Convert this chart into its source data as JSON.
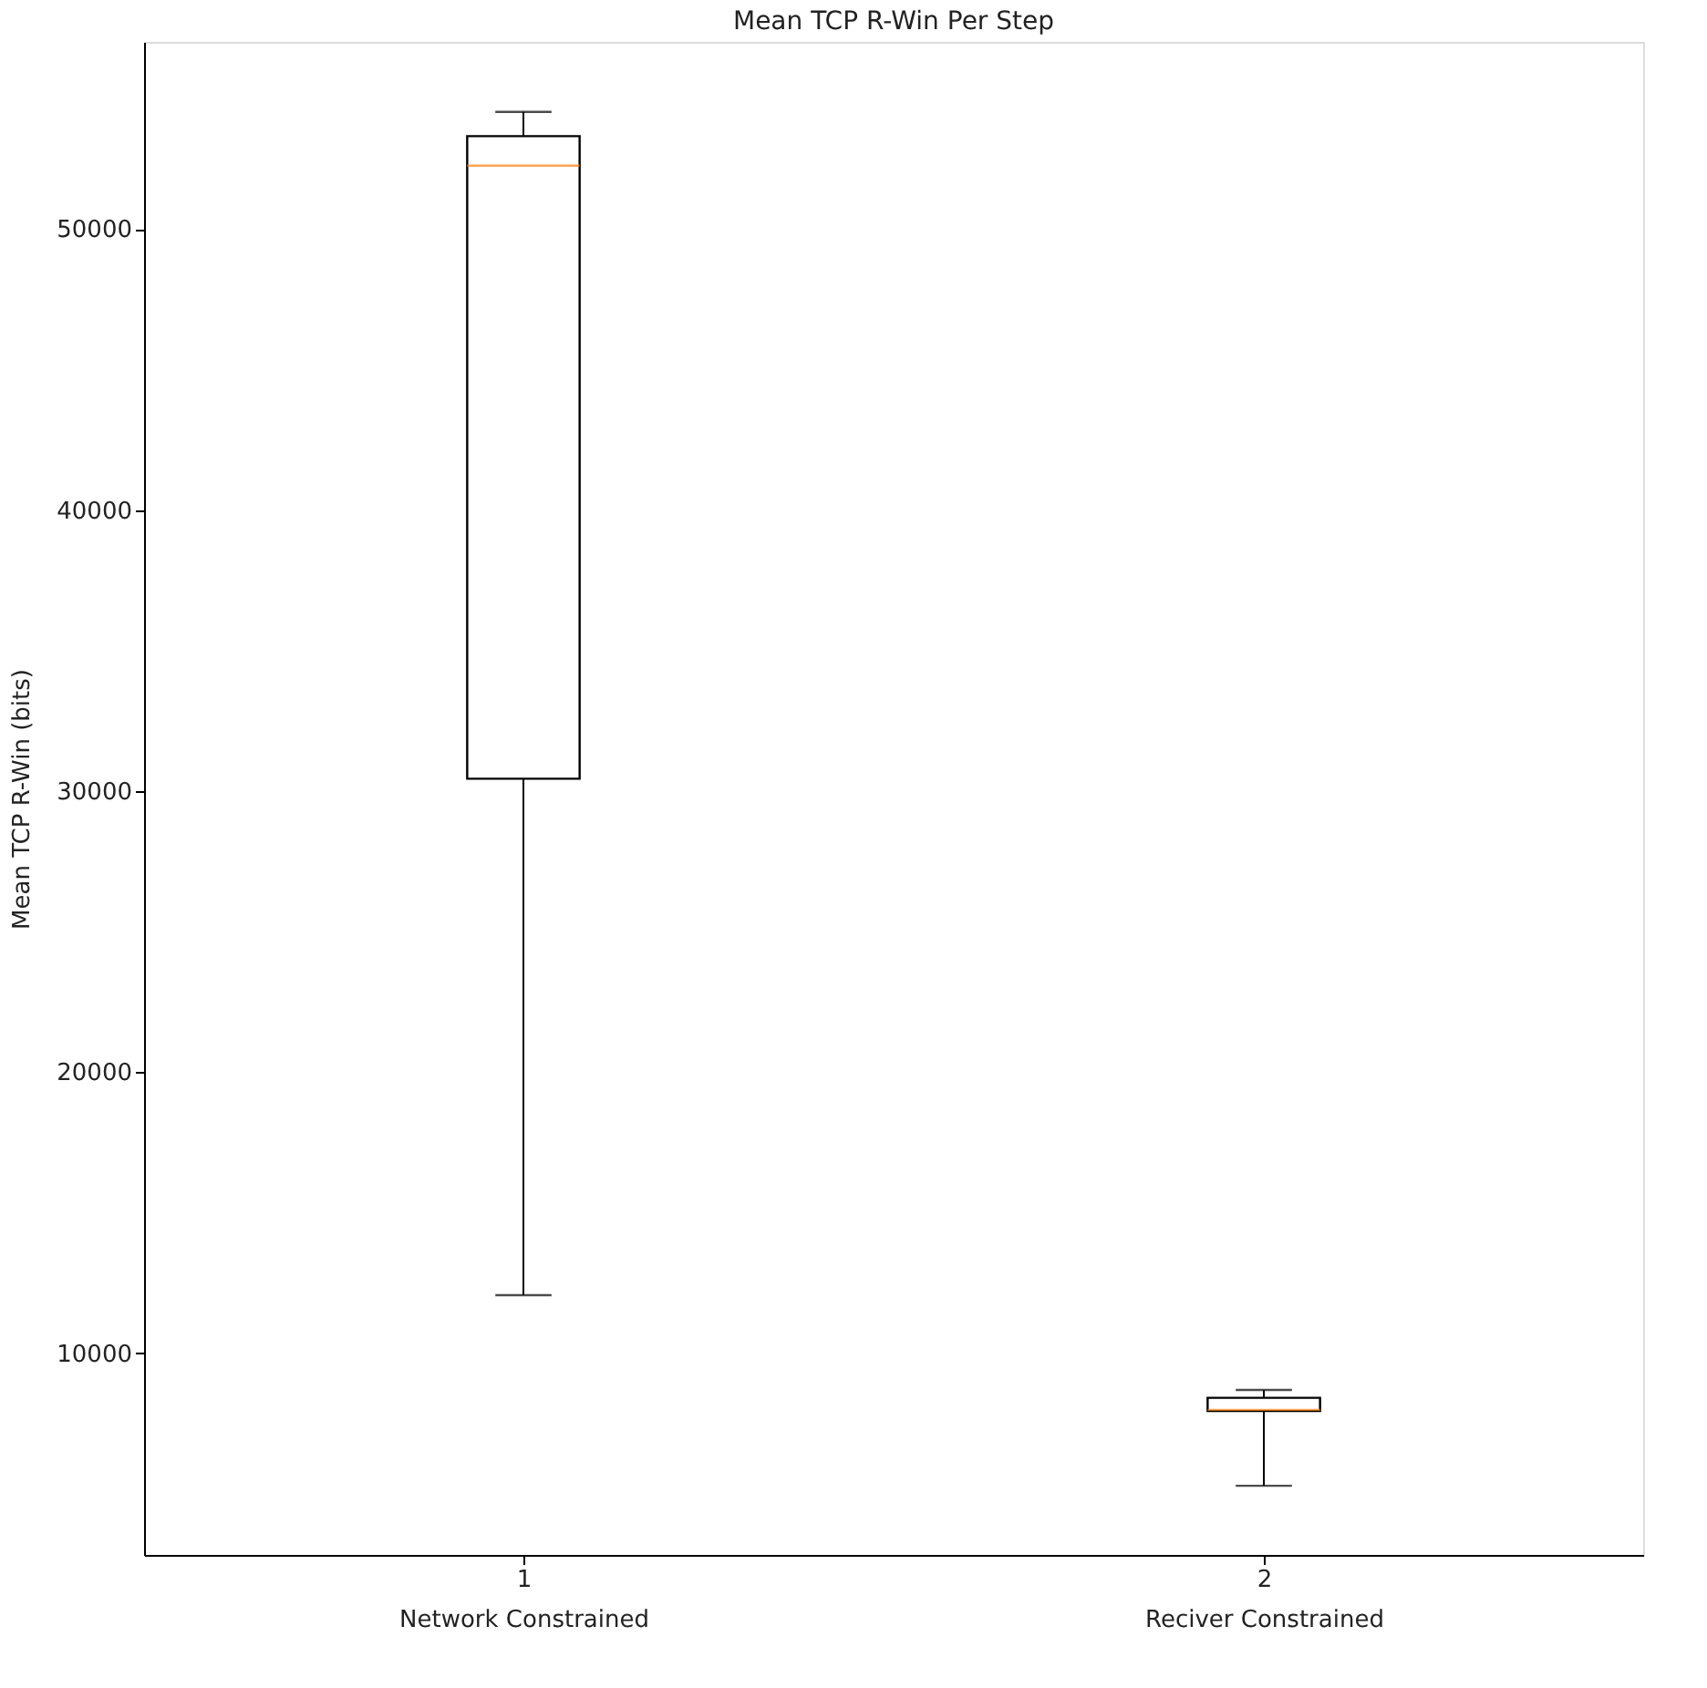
{
  "chart_data": {
    "type": "box",
    "title": "Mean TCP R-Win Per Step",
    "ylabel": "Mean TCP R-Win (bits)",
    "categories": [
      "1\nNetwork Constrained",
      "2\nReciver Constrained"
    ],
    "boxes": [
      {
        "low": 12070,
        "q1": 30440,
        "median": 52250,
        "q3": 53300,
        "high": 54160
      },
      {
        "low": 5290,
        "q1": 7950,
        "median": 7990,
        "q3": 8420,
        "high": 8700
      }
    ],
    "color": "#000000",
    "ylim": [
      2830,
      56650
    ],
    "yticks": [
      10000,
      20000,
      30000,
      40000,
      50000
    ],
    "grid": false
  }
}
